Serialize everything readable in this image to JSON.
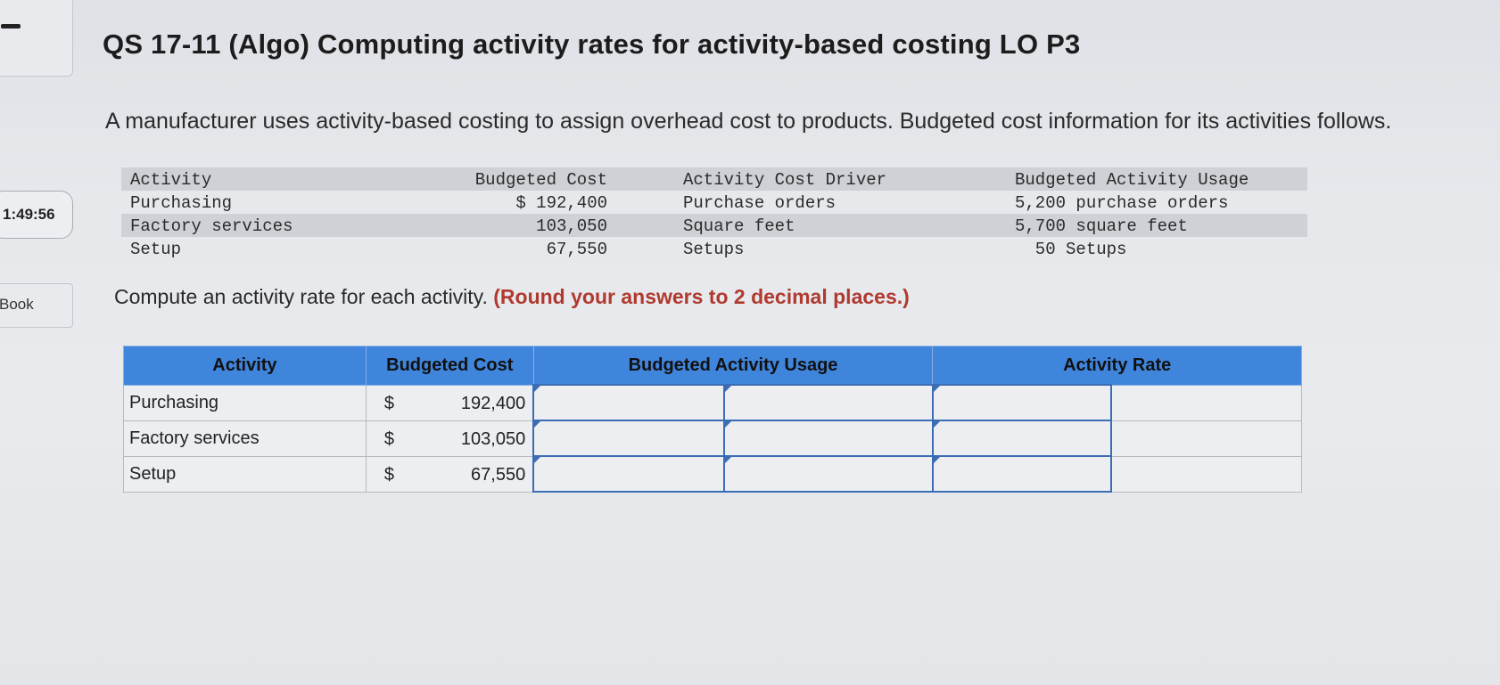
{
  "sidebar": {
    "timer": "1:49:56",
    "ebook_label": "Book"
  },
  "header": {
    "title": "QS 17-11 (Algo) Computing activity rates for activity-based costing LO P3"
  },
  "intro_text": "A manufacturer uses activity-based costing to assign overhead cost to products. Budgeted cost information for its activities follows.",
  "given_table": {
    "headers": [
      "Activity",
      "Budgeted Cost",
      "Activity Cost Driver",
      "Budgeted Activity Usage"
    ],
    "rows": [
      {
        "activity": "Purchasing",
        "cost": "$ 192,400",
        "driver": "Purchase orders",
        "usage": "5,200 purchase orders"
      },
      {
        "activity": "Factory services",
        "cost": "103,050",
        "driver": "Square feet",
        "usage": "5,700 square feet"
      },
      {
        "activity": "Setup",
        "cost": "67,550",
        "driver": "Setups",
        "usage": "  50 Setups"
      }
    ]
  },
  "instructions": {
    "text": "Compute an activity rate for each activity.",
    "emphasis": "(Round your answers to 2 decimal places.)"
  },
  "answer_table": {
    "headers": [
      "Activity",
      "Budgeted Cost",
      "Budgeted Activity Usage",
      "Activity Rate"
    ],
    "rows": [
      {
        "activity": "Purchasing",
        "dollar": "$",
        "cost": "192,400"
      },
      {
        "activity": "Factory services",
        "dollar": "$",
        "cost": "103,050"
      },
      {
        "activity": "Setup",
        "dollar": "$",
        "cost": "67,550"
      }
    ]
  }
}
